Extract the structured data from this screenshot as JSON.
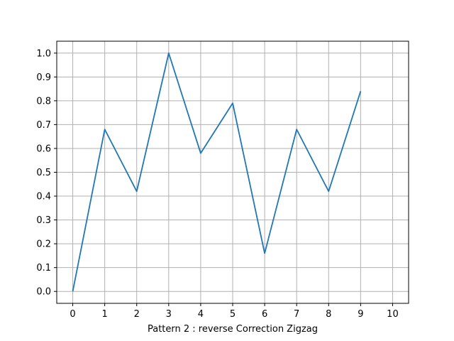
{
  "chart_data": {
    "type": "line",
    "title": "",
    "xlabel": "Pattern 2 : reverse Correction Zigzag",
    "ylabel": "",
    "x": [
      0,
      1,
      2,
      3,
      4,
      5,
      6,
      7,
      8,
      9
    ],
    "series": [
      {
        "values": [
          0.0,
          0.68,
          0.42,
          1.0,
          0.58,
          0.79,
          0.16,
          0.68,
          0.42,
          0.84
        ],
        "color": "#1f77b4"
      }
    ],
    "xlim": [
      -0.5,
      10.5
    ],
    "ylim": [
      -0.05,
      1.05
    ],
    "xticks": [
      0,
      1,
      2,
      3,
      4,
      5,
      6,
      7,
      8,
      9,
      10
    ],
    "yticks": [
      "0.0",
      "0.1",
      "0.2",
      "0.3",
      "0.4",
      "0.5",
      "0.6",
      "0.7",
      "0.8",
      "0.9",
      "1.0"
    ],
    "grid": true,
    "grid_color": "#b0b0b0",
    "legend": "none"
  }
}
